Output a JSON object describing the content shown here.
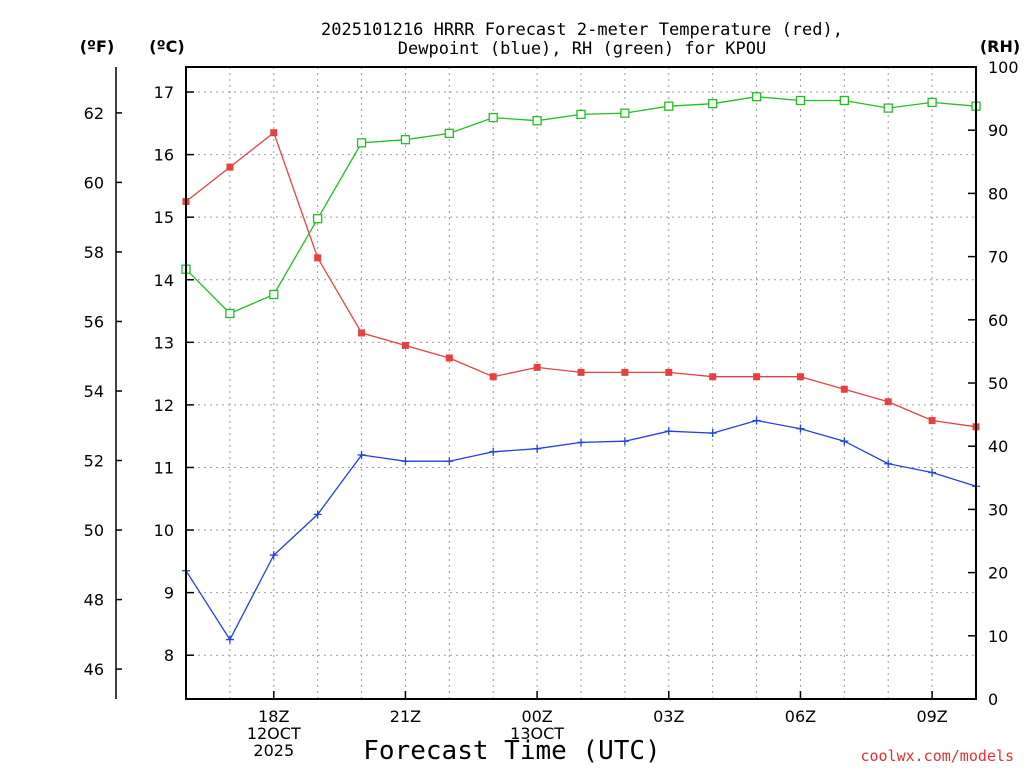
{
  "chart_data": {
    "type": "line",
    "title_line1": "2025101216 HRRR Forecast 2-meter Temperature (red),",
    "title_line2": "Dewpoint (blue), RH (green) for KPOU",
    "xlabel": "Forecast Time (UTC)",
    "credit": "coolwx.com/models",
    "units": {
      "fahrenheit": "(ºF)",
      "celsius": "(ºC)",
      "rh": "(RH)"
    },
    "x_hours": [
      16,
      17,
      18,
      19,
      20,
      21,
      22,
      23,
      24,
      25,
      26,
      27,
      28,
      29,
      30,
      31,
      32,
      33,
      34
    ],
    "xlim": [
      16,
      34
    ],
    "x_ticks": [
      {
        "hour": 18,
        "lines": [
          "18Z",
          "12OCT",
          "2025"
        ]
      },
      {
        "hour": 21,
        "lines": [
          "21Z"
        ]
      },
      {
        "hour": 24,
        "lines": [
          "00Z",
          "13OCT"
        ]
      },
      {
        "hour": 27,
        "lines": [
          "03Z"
        ]
      },
      {
        "hour": 30,
        "lines": [
          "06Z"
        ]
      },
      {
        "hour": 33,
        "lines": [
          "09Z"
        ]
      }
    ],
    "celsius_axis": {
      "ylim": [
        7.3,
        17.4
      ],
      "ticks": [
        8,
        9,
        10,
        11,
        12,
        13,
        14,
        15,
        16,
        17
      ]
    },
    "fahrenheit_axis": {
      "ticks": [
        46,
        48,
        50,
        52,
        54,
        56,
        58,
        60,
        62
      ]
    },
    "rh_axis": {
      "ylim": [
        0,
        100
      ],
      "ticks": [
        0,
        10,
        20,
        30,
        40,
        50,
        60,
        70,
        80,
        90,
        100
      ]
    },
    "series": [
      {
        "name": "Temperature",
        "color": "#e84040",
        "marker": "filled-square",
        "axis": "celsius",
        "values": [
          15.25,
          15.8,
          16.35,
          14.35,
          13.15,
          12.95,
          12.75,
          12.45,
          12.6,
          12.52,
          12.52,
          12.52,
          12.45,
          12.45,
          12.45,
          12.25,
          12.05,
          11.75,
          11.65
        ]
      },
      {
        "name": "Dewpoint",
        "color": "#2040e0",
        "marker": "plus",
        "axis": "celsius",
        "values": [
          9.35,
          8.25,
          9.6,
          10.25,
          11.2,
          11.1,
          11.1,
          11.25,
          11.3,
          11.4,
          11.42,
          11.58,
          11.55,
          11.75,
          11.62,
          11.42,
          11.06,
          10.92,
          10.7
        ]
      },
      {
        "name": "RH",
        "color": "#20c020",
        "marker": "open-square",
        "axis": "rh",
        "values": [
          68,
          61,
          64,
          76,
          88,
          88.5,
          89.5,
          92,
          91.5,
          92.5,
          92.7,
          93.8,
          94.2,
          95.3,
          94.7,
          94.7,
          93.5,
          94.4,
          93.8
        ]
      }
    ]
  }
}
